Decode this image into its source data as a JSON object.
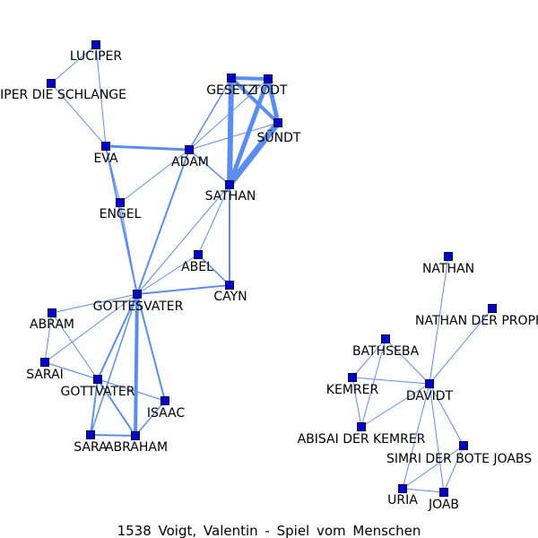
{
  "caption": "1538 Voigt, Valentin - Spiel vom Menschen",
  "colors": {
    "node_fill": "#0000cc",
    "node_stroke": "#000033",
    "edge": "#5b8def"
  },
  "node_icon": "square-node",
  "nodes": [
    {
      "id": "LUCIPER",
      "label": "LUCIPER"
    },
    {
      "id": "SCHLANGE",
      "label": "LUCIPER DIE SCHLANGE"
    },
    {
      "id": "EVA",
      "label": "EVA"
    },
    {
      "id": "ENGEL",
      "label": "ENGEL"
    },
    {
      "id": "ADAM",
      "label": "ADAM"
    },
    {
      "id": "GESETZ",
      "label": "GESETZ"
    },
    {
      "id": "TODT",
      "label": "TODT"
    },
    {
      "id": "SUNDT",
      "label": "SÜNDT"
    },
    {
      "id": "SATHAN",
      "label": "SATHAN"
    },
    {
      "id": "ABEL",
      "label": "ABEL"
    },
    {
      "id": "CAYN",
      "label": "CAYN"
    },
    {
      "id": "GOTTESVATER",
      "label": "GOTTESVATER"
    },
    {
      "id": "ABRAM",
      "label": "ABRAM"
    },
    {
      "id": "SARAI",
      "label": "SARAI"
    },
    {
      "id": "GOTTVATER",
      "label": "GOTTVATER"
    },
    {
      "id": "ISAAC",
      "label": "ISAAC"
    },
    {
      "id": "SARA",
      "label": "SARA"
    },
    {
      "id": "ABRAHAM",
      "label": "ABRAHAM"
    },
    {
      "id": "NATHAN",
      "label": "NATHAN"
    },
    {
      "id": "NATHANPROPHET",
      "label": "NATHAN DER PROPHET"
    },
    {
      "id": "BATHSEBA",
      "label": "BATHSEBA"
    },
    {
      "id": "KEMRER",
      "label": "KEMRER"
    },
    {
      "id": "DAVIDT",
      "label": "DAVIDT"
    },
    {
      "id": "ABISAI",
      "label": "ABISAI DER KEMRER"
    },
    {
      "id": "SIMRI",
      "label": "SIMRI DER BOTE JOABS"
    },
    {
      "id": "URIA",
      "label": "URIA"
    },
    {
      "id": "JOAB",
      "label": "JOAB"
    }
  ],
  "edges": [
    {
      "source": "LUCIPER",
      "target": "SCHLANGE",
      "weight": 1
    },
    {
      "source": "LUCIPER",
      "target": "EVA",
      "weight": 1
    },
    {
      "source": "SCHLANGE",
      "target": "EVA",
      "weight": 1
    },
    {
      "source": "EVA",
      "target": "ADAM",
      "weight": 3
    },
    {
      "source": "EVA",
      "target": "ENGEL",
      "weight": 1
    },
    {
      "source": "EVA",
      "target": "GOTTESVATER",
      "weight": 2
    },
    {
      "source": "ENGEL",
      "target": "ADAM",
      "weight": 1
    },
    {
      "source": "ENGEL",
      "target": "GOTTESVATER",
      "weight": 1
    },
    {
      "source": "ADAM",
      "target": "GESETZ",
      "weight": 1.5
    },
    {
      "source": "ADAM",
      "target": "TODT",
      "weight": 1
    },
    {
      "source": "ADAM",
      "target": "SUNDT",
      "weight": 1
    },
    {
      "source": "ADAM",
      "target": "SATHAN",
      "weight": 1.5
    },
    {
      "source": "ADAM",
      "target": "GOTTESVATER",
      "weight": 2
    },
    {
      "source": "GESETZ",
      "target": "TODT",
      "weight": 4
    },
    {
      "source": "GESETZ",
      "target": "SUNDT",
      "weight": 4
    },
    {
      "source": "GESETZ",
      "target": "SATHAN",
      "weight": 6
    },
    {
      "source": "TODT",
      "target": "SUNDT",
      "weight": 5
    },
    {
      "source": "TODT",
      "target": "SATHAN",
      "weight": 5
    },
    {
      "source": "SUNDT",
      "target": "SATHAN",
      "weight": 7
    },
    {
      "source": "SATHAN",
      "target": "ABEL",
      "weight": 1
    },
    {
      "source": "SATHAN",
      "target": "CAYN",
      "weight": 2
    },
    {
      "source": "SATHAN",
      "target": "GOTTESVATER",
      "weight": 1
    },
    {
      "source": "ABEL",
      "target": "CAYN",
      "weight": 1.5
    },
    {
      "source": "ABEL",
      "target": "GOTTESVATER",
      "weight": 1
    },
    {
      "source": "CAYN",
      "target": "GOTTESVATER",
      "weight": 2
    },
    {
      "source": "GOTTESVATER",
      "target": "ABRAM",
      "weight": 1
    },
    {
      "source": "GOTTESVATER",
      "target": "SARAI",
      "weight": 1
    },
    {
      "source": "GOTTESVATER",
      "target": "GOTTVATER",
      "weight": 2
    },
    {
      "source": "GOTTESVATER",
      "target": "ISAAC",
      "weight": 2
    },
    {
      "source": "GOTTESVATER",
      "target": "SARA",
      "weight": 1.5
    },
    {
      "source": "GOTTESVATER",
      "target": "ABRAHAM",
      "weight": 4
    },
    {
      "source": "ABRAM",
      "target": "SARAI",
      "weight": 1
    },
    {
      "source": "ABRAM",
      "target": "GOTTVATER",
      "weight": 1
    },
    {
      "source": "SARAI",
      "target": "GOTTVATER",
      "weight": 1
    },
    {
      "source": "SARAI",
      "target": "ISAAC",
      "weight": 1
    },
    {
      "source": "GOTTVATER",
      "target": "ISAAC",
      "weight": 1
    },
    {
      "source": "GOTTVATER",
      "target": "SARA",
      "weight": 2
    },
    {
      "source": "GOTTVATER",
      "target": "ABRAHAM",
      "weight": 2
    },
    {
      "source": "ISAAC",
      "target": "ABRAHAM",
      "weight": 1.5
    },
    {
      "source": "SARA",
      "target": "ABRAHAM",
      "weight": 2
    },
    {
      "source": "NATHAN",
      "target": "DAVIDT",
      "weight": 1
    },
    {
      "source": "NATHANPROPHET",
      "target": "DAVIDT",
      "weight": 1
    },
    {
      "source": "BATHSEBA",
      "target": "KEMRER",
      "weight": 1
    },
    {
      "source": "BATHSEBA",
      "target": "DAVIDT",
      "weight": 1
    },
    {
      "source": "BATHSEBA",
      "target": "ABISAI",
      "weight": 1
    },
    {
      "source": "KEMRER",
      "target": "DAVIDT",
      "weight": 1
    },
    {
      "source": "KEMRER",
      "target": "ABISAI",
      "weight": 1
    },
    {
      "source": "ABISAI",
      "target": "DAVIDT",
      "weight": 1
    },
    {
      "source": "DAVIDT",
      "target": "SIMRI",
      "weight": 1
    },
    {
      "source": "DAVIDT",
      "target": "URIA",
      "weight": 1
    },
    {
      "source": "DAVIDT",
      "target": "JOAB",
      "weight": 1
    },
    {
      "source": "SIMRI",
      "target": "URIA",
      "weight": 1
    },
    {
      "source": "SIMRI",
      "target": "JOAB",
      "weight": 1
    },
    {
      "source": "URIA",
      "target": "JOAB",
      "weight": 1
    }
  ]
}
